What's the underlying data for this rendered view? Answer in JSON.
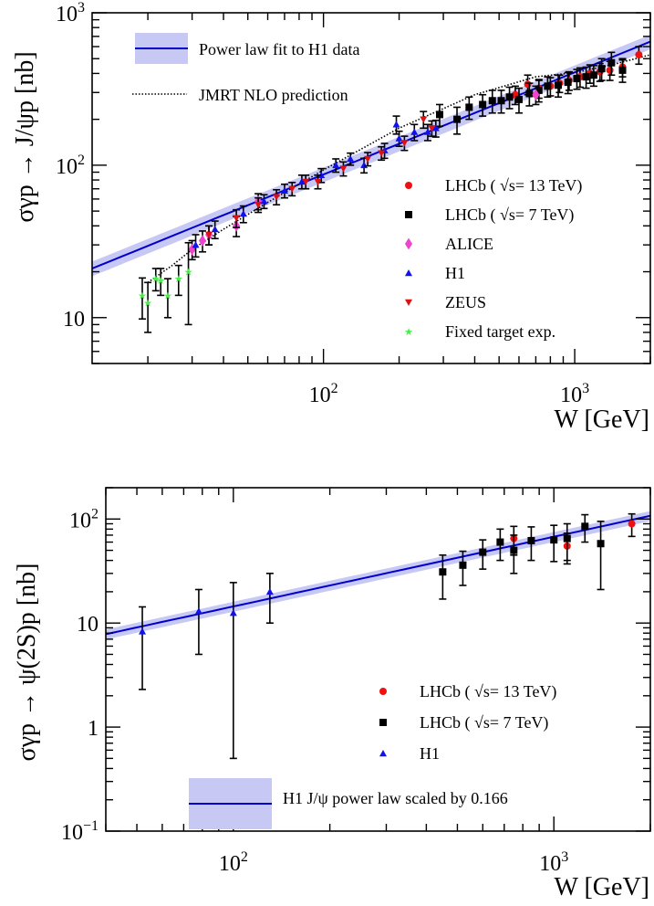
{
  "colors": {
    "fit_line": "#0000cc",
    "fit_band": "#c8c8f5",
    "lhcb13": "#ee1111",
    "lhcb7": "#000000",
    "alice": "#ee44cc",
    "h1": "#1111ee",
    "zeus": "#dd1111",
    "fixed": "#44ee44",
    "errorbar": "#000000"
  },
  "chart_data": [
    {
      "type": "scatter",
      "log_x": true,
      "log_y": true,
      "xlim": [
        12,
        2000
      ],
      "ylim": [
        5,
        1000
      ],
      "xlabel": "W [GeV]",
      "ylabel": "σγp → J/ψp [nb]",
      "x_ticks": [
        {
          "v": 100,
          "base": "10",
          "exp": "2"
        },
        {
          "v": 1000,
          "base": "10",
          "exp": "3"
        }
      ],
      "y_ticks": [
        {
          "v": 10,
          "base": "10",
          "exp": ""
        },
        {
          "v": 100,
          "base": "10",
          "exp": "2"
        },
        {
          "v": 1000,
          "base": "10",
          "exp": "3"
        }
      ],
      "fit": {
        "name": "Power law fit to H1 data",
        "a": 81,
        "w0": 90,
        "n": 0.67,
        "band": 0.11
      },
      "jmrt": {
        "name": "JMRT NLO prediction",
        "points": [
          [
            20,
            17
          ],
          [
            25,
            22
          ],
          [
            30,
            28
          ],
          [
            40,
            38
          ],
          [
            60,
            57
          ],
          [
            100,
            93
          ],
          [
            200,
            175
          ],
          [
            400,
            290
          ],
          [
            700,
            380
          ],
          [
            1000,
            405
          ],
          [
            1400,
            455
          ],
          [
            2000,
            530
          ]
        ]
      },
      "legend": [
        {
          "series": "LHCb13",
          "label": "LHCb ( √s= 13 TeV)"
        },
        {
          "series": "LHCb7",
          "label": "LHCb ( √s= 7 TeV)"
        },
        {
          "series": "ALICE",
          "label": "ALICE"
        },
        {
          "series": "H1",
          "label": "H1"
        },
        {
          "series": "ZEUS",
          "label": "ZEUS"
        },
        {
          "series": "Fixed",
          "label": "Fixed target exp."
        }
      ],
      "series": [
        {
          "name": "LHCb13",
          "marker": "circle",
          "points": [
            [
              580,
              290,
              40
            ],
            [
              650,
              340,
              50
            ],
            [
              720,
              320,
              45
            ],
            [
              800,
              330,
              45
            ],
            [
              870,
              345,
              45
            ],
            [
              950,
              360,
              50
            ],
            [
              1050,
              380,
              55
            ],
            [
              1150,
              400,
              55
            ],
            [
              1260,
              410,
              55
            ],
            [
              1380,
              420,
              60
            ],
            [
              1550,
              440,
              60
            ],
            [
              1800,
              530,
              70
            ]
          ]
        },
        {
          "name": "LHCb7",
          "marker": "square",
          "points": [
            [
              290,
              215,
              35
            ],
            [
              340,
              200,
              40
            ],
            [
              380,
              240,
              40
            ],
            [
              430,
              250,
              40
            ],
            [
              470,
              265,
              45
            ],
            [
              510,
              265,
              45
            ],
            [
              550,
              280,
              45
            ],
            [
              600,
              270,
              50
            ],
            [
              660,
              295,
              50
            ],
            [
              720,
              310,
              50
            ],
            [
              780,
              330,
              50
            ],
            [
              860,
              335,
              55
            ],
            [
              940,
              350,
              55
            ],
            [
              1020,
              370,
              55
            ],
            [
              1110,
              380,
              60
            ],
            [
              1190,
              390,
              60
            ],
            [
              1280,
              430,
              70
            ],
            [
              1400,
              470,
              80
            ],
            [
              1550,
              420,
              70
            ]
          ]
        },
        {
          "name": "ALICE",
          "marker": "diamond",
          "points": [
            [
              30,
              28,
              4
            ],
            [
              33,
              32,
              5
            ],
            [
              35,
              35,
              5
            ],
            [
              45,
              40,
              6
            ],
            [
              55,
              58,
              7
            ],
            [
              700,
              290,
              40
            ]
          ]
        },
        {
          "name": "H1",
          "marker": "triangle-up",
          "points": [
            [
              31,
              30,
              5
            ],
            [
              37,
              38,
              5
            ],
            [
              48,
              48,
              6
            ],
            [
              58,
              58,
              6
            ],
            [
              70,
              68,
              7
            ],
            [
              82,
              78,
              8
            ],
            [
              98,
              86,
              9
            ],
            [
              112,
              100,
              10
            ],
            [
              128,
              110,
              10
            ],
            [
              145,
              100,
              11
            ],
            [
              175,
              125,
              14
            ],
            [
              200,
              150,
              17
            ],
            [
              230,
              165,
              20
            ],
            [
              260,
              165,
              20
            ],
            [
              280,
              175,
              22
            ],
            [
              195,
              185,
              25
            ]
          ]
        },
        {
          "name": "ZEUS",
          "marker": "triangle-down",
          "points": [
            [
              35,
              35,
              5
            ],
            [
              45,
              45,
              6
            ],
            [
              55,
              55,
              6
            ],
            [
              65,
              62,
              7
            ],
            [
              75,
              70,
              7
            ],
            [
              85,
              78,
              8
            ],
            [
              95,
              78,
              8
            ],
            [
              120,
              95,
              10
            ],
            [
              150,
              110,
              11
            ],
            [
              170,
              120,
              12
            ],
            [
              210,
              140,
              15
            ],
            [
              270,
              175,
              20
            ],
            [
              250,
              200,
              25
            ]
          ]
        },
        {
          "name": "Fixed",
          "marker": "star",
          "points": [
            [
              19,
              14,
              4.2
            ],
            [
              20,
              12.5,
              4.5
            ],
            [
              21.5,
              18,
              3
            ],
            [
              22.5,
              17.5,
              3.5
            ],
            [
              24,
              14,
              4
            ],
            [
              26.5,
              18,
              4
            ],
            [
              29,
              20,
              11
            ]
          ]
        }
      ]
    },
    {
      "type": "scatter",
      "log_x": true,
      "log_y": true,
      "xlim": [
        40,
        2000
      ],
      "ylim": [
        0.1,
        200
      ],
      "xlabel": "W [GeV]",
      "ylabel": "σγp → ψ(2S)p [nb]",
      "x_ticks": [
        {
          "v": 100,
          "base": "10",
          "exp": "2"
        },
        {
          "v": 1000,
          "base": "10",
          "exp": "3"
        }
      ],
      "y_ticks": [
        {
          "v": 0.1,
          "base": "10",
          "exp": "−1"
        },
        {
          "v": 1,
          "base": "1",
          "exp": ""
        },
        {
          "v": 10,
          "base": "10",
          "exp": ""
        },
        {
          "v": 100,
          "base": "10",
          "exp": "2"
        }
      ],
      "fit": {
        "name": "H1 J/ψ power law scaled by 0.166",
        "a": 13.45,
        "w0": 90,
        "n": 0.67,
        "band": 0.11
      },
      "legend": [
        {
          "series": "LHCb13",
          "label": "LHCb ( √s= 13 TeV)"
        },
        {
          "series": "LHCb7",
          "label": "LHCb ( √s= 7 TeV)"
        },
        {
          "series": "H1",
          "label": "H1"
        }
      ],
      "series": [
        {
          "name": "LHCb13",
          "marker": "circle",
          "points": [
            [
              750,
              65,
              20
            ],
            [
              1100,
              55,
              18
            ],
            [
              1750,
              90,
              22
            ]
          ]
        },
        {
          "name": "LHCb7",
          "marker": "square",
          "points": [
            [
              450,
              31,
              14
            ],
            [
              520,
              36,
              13
            ],
            [
              600,
              48,
              15
            ],
            [
              680,
              60,
              20
            ],
            [
              750,
              50,
              20
            ],
            [
              850,
              62,
              22
            ],
            [
              1000,
              63,
              24
            ],
            [
              1100,
              65,
              25
            ],
            [
              1250,
              85,
              25
            ],
            [
              1400,
              58,
              37
            ]
          ]
        },
        {
          "name": "H1",
          "marker": "triangle-up",
          "points": [
            [
              52,
              8.3,
              6
            ],
            [
              78,
              13,
              8
            ],
            [
              100,
              12.5,
              12
            ],
            [
              130,
              20,
              10
            ]
          ]
        }
      ]
    }
  ]
}
